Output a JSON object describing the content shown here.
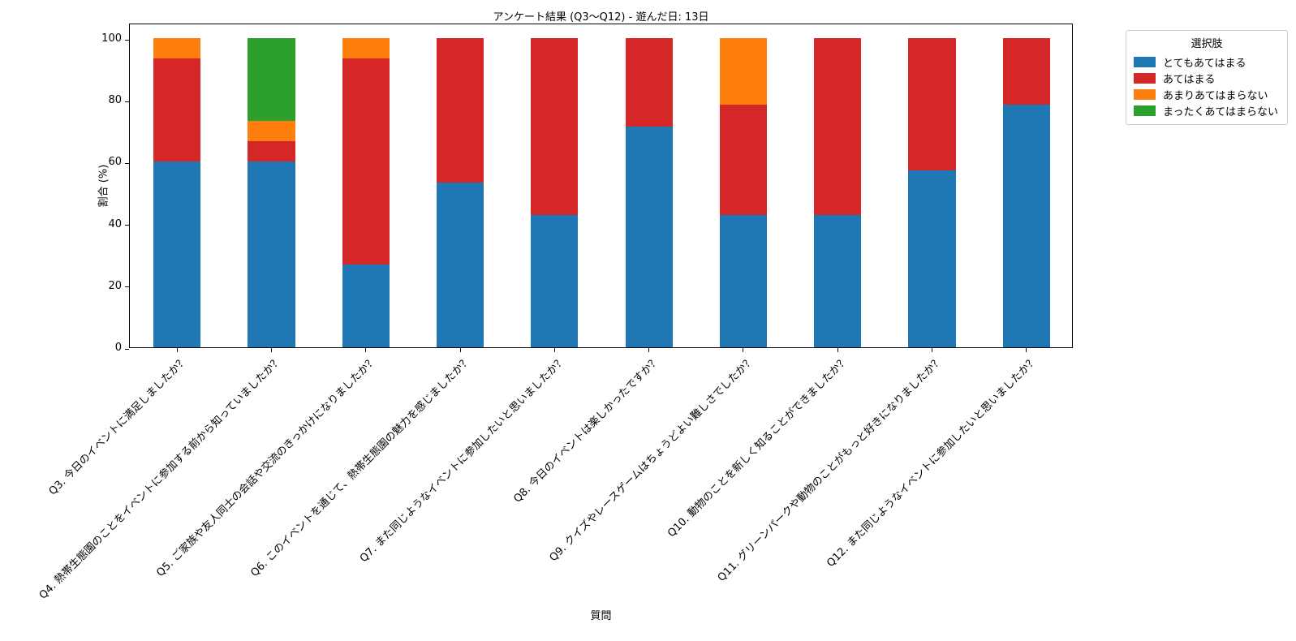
{
  "chart_data": {
    "type": "bar",
    "stacked": true,
    "orientation": "vertical",
    "title": "アンケート結果 (Q3〜Q12) - 遊んだ日: 13日",
    "xlabel": "質問",
    "ylabel": "割合 (%)",
    "ylim": [
      0,
      105
    ],
    "yticks": [
      0,
      20,
      40,
      60,
      80,
      100
    ],
    "grid": false,
    "legend_title": "選択肢",
    "legend_position": "outside-upper-right",
    "bar_width_fraction": 0.5,
    "xtick_rotation_deg": 45,
    "categories": [
      "Q3. 今日のイベントに満足しましたか？",
      "Q4. 熱帯生態園のことをイベントに参加する前から知っていましたか？",
      "Q5. ご家族や友人同士の会話や交流のきっかけになりましたか？",
      "Q6. このイベントを通じて、熱帯生態園の魅力を感じましたか？",
      "Q7. また同じようなイベントに参加したいと思いましたか？",
      "Q8. 今日のイベントは楽しかったですか？",
      "Q9. クイズやレースゲームはちょうどよい難しさでしたか？",
      "Q10. 動物のことを新しく知ることができましたか？",
      "Q11. グリーンパークや動物のことがもっと好きになりましたか？",
      "Q12. また同じようなイベントに参加したいと思いましたか？"
    ],
    "series": [
      {
        "name": "とてもあてはまる",
        "color": "#1f77b4",
        "values": [
          60,
          60,
          26.67,
          53.33,
          42.86,
          71.43,
          42.86,
          42.86,
          57.14,
          78.57
        ]
      },
      {
        "name": "あてはまる",
        "color": "#d62728",
        "values": [
          33.33,
          6.67,
          66.67,
          46.67,
          57.14,
          28.57,
          35.71,
          57.14,
          42.86,
          21.43
        ]
      },
      {
        "name": "あまりあてはまらない",
        "color": "#ff7f0e",
        "values": [
          6.67,
          6.67,
          6.67,
          0,
          0,
          0,
          21.43,
          0,
          0,
          0
        ]
      },
      {
        "name": "まったくあてはまらない",
        "color": "#2ca02c",
        "values": [
          0,
          26.67,
          0,
          0,
          0,
          0,
          0,
          0,
          0,
          0
        ]
      }
    ]
  }
}
